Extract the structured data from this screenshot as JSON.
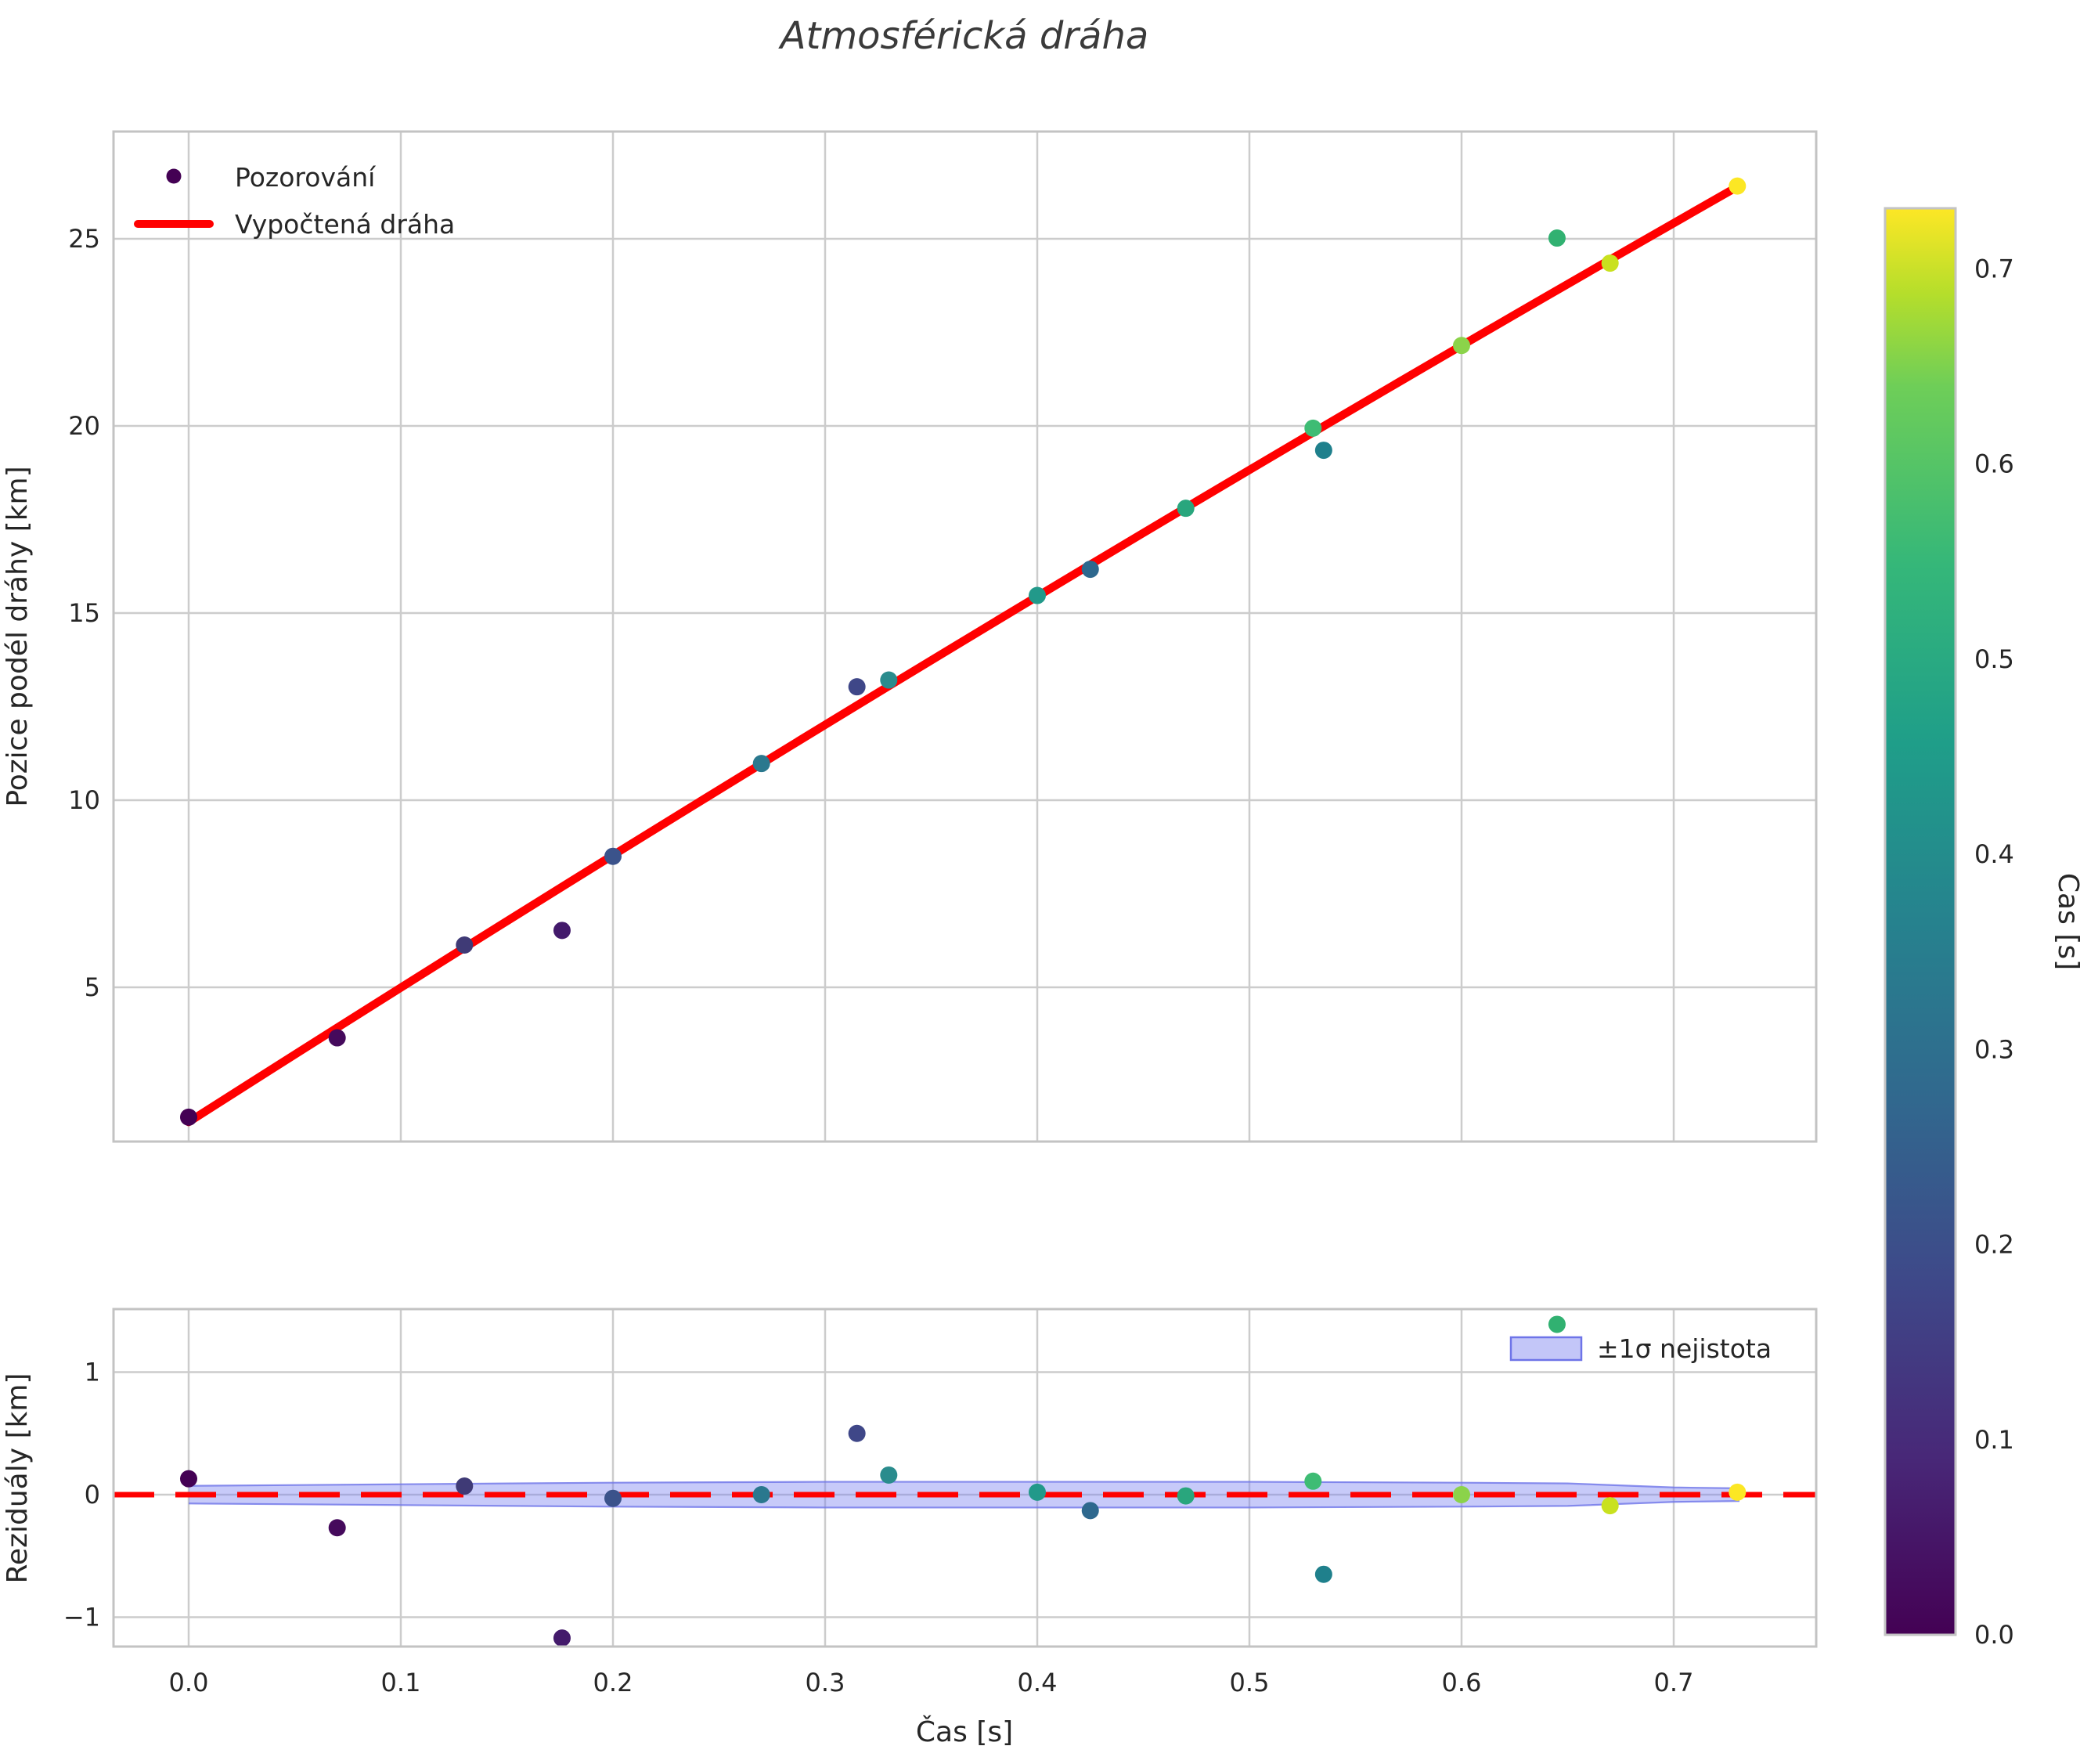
{
  "title": "Atmosférická dráha",
  "top_plot": {
    "ylabel": "Pozice podél dráhy [km]",
    "legend": {
      "observations": "Pozorování",
      "fit": "Vypočtená dráha"
    },
    "ytick_labels": [
      "5",
      "10",
      "15",
      "20",
      "25"
    ]
  },
  "bottom_plot": {
    "ylabel": "Reziduály [km]",
    "xlabel": "Čas [s]",
    "legend_band": "±1σ nejistota",
    "ytick_labels": [
      "−1",
      "0",
      "1"
    ]
  },
  "colorbar": {
    "label": "Čas [s]",
    "tick_labels": [
      "0.0",
      "0.1",
      "0.2",
      "0.3",
      "0.4",
      "0.5",
      "0.6",
      "0.7"
    ],
    "vmin": 0.0,
    "vmax": 0.731,
    "gradient_stops": [
      {
        "at": 0.0,
        "color": "#440154"
      },
      {
        "at": 0.125,
        "color": "#482878"
      },
      {
        "at": 0.25,
        "color": "#3e4989"
      },
      {
        "at": 0.375,
        "color": "#31688e"
      },
      {
        "at": 0.5,
        "color": "#26828e"
      },
      {
        "at": 0.625,
        "color": "#1f9e89"
      },
      {
        "at": 0.75,
        "color": "#35b779"
      },
      {
        "at": 0.875,
        "color": "#6ece58"
      },
      {
        "at": 0.94,
        "color": "#b5de2b"
      },
      {
        "at": 1.0,
        "color": "#fde725"
      }
    ]
  },
  "colors": {
    "fit_line": "#ff0000",
    "zero_line": "#ff0000",
    "band_fill": "rgba(122,128,240,0.42)",
    "band_edge": "#6e74e8",
    "grid": "#cccccc",
    "spine": "#c3c3c3",
    "legend_marker": "#440154"
  },
  "chart_data": {
    "type": "scatter",
    "title": "Atmosférická dráha",
    "xlabel": "Čas [s]",
    "ylabel_top": "Pozice podél dráhy [km]",
    "ylabel_bottom": "Reziduály [km]",
    "colorbar_label": "Čas [s]",
    "grid": true,
    "legend_position_top": "upper left",
    "legend_position_bottom": "upper right",
    "xlim": [
      -0.035,
      0.767
    ],
    "ylim_top": [
      0.9,
      27.8
    ],
    "ylim_bottom": [
      -1.24,
      1.51
    ],
    "xticks": [
      0.0,
      0.1,
      0.2,
      0.3,
      0.4,
      0.5,
      0.6,
      0.7
    ],
    "xtick_labels": [
      "0.0",
      "0.1",
      "0.2",
      "0.3",
      "0.4",
      "0.5",
      "0.6",
      "0.7"
    ],
    "yticks_top": [
      5,
      10,
      15,
      20,
      25
    ],
    "yticks_bottom": [
      -1,
      0,
      1
    ],
    "colorbar_ticks": [
      0.0,
      0.1,
      0.2,
      0.3,
      0.4,
      0.5,
      0.6,
      0.7
    ],
    "series": [
      {
        "name": "Pozorování",
        "t_s": [
          0.0,
          0.07,
          0.13,
          0.176,
          0.2,
          0.27,
          0.315,
          0.33,
          0.4,
          0.425,
          0.47,
          0.53,
          0.535,
          0.6,
          0.645,
          0.67,
          0.73
        ],
        "position_km": [
          1.53,
          3.65,
          6.13,
          6.52,
          8.5,
          10.98,
          13.03,
          13.21,
          15.47,
          16.17,
          17.8,
          19.94,
          19.35,
          22.15,
          25.02,
          24.35,
          26.41
        ],
        "residual_km": [
          0.13,
          -0.27,
          0.07,
          -1.17,
          -0.03,
          0.0,
          0.5,
          0.16,
          0.02,
          -0.13,
          -0.01,
          0.11,
          -0.65,
          0.0,
          1.39,
          -0.09,
          0.02
        ],
        "point_colors": [
          "#440154",
          "#450a5c",
          "#3f3a76",
          "#431a6b",
          "#3b538b",
          "#2a788e",
          "#3f4788",
          "#2a8c8d",
          "#22998a",
          "#2e688e",
          "#29a67d",
          "#3ebc74",
          "#1f808c",
          "#8bd34a",
          "#31b171",
          "#c9e11f",
          "#fce724"
        ]
      }
    ],
    "fit_line": {
      "name": "Vypočtená dráha",
      "t_s": [
        0.0,
        0.365,
        0.73
      ],
      "s_km": [
        1.4,
        14.25,
        26.39
      ]
    },
    "uncertainty_band": {
      "name": "±1σ nejistota",
      "t_s": [
        0.0,
        0.1,
        0.2,
        0.3,
        0.4,
        0.5,
        0.6,
        0.65,
        0.7,
        0.731
      ],
      "half_width_km": [
        0.072,
        0.085,
        0.098,
        0.105,
        0.105,
        0.105,
        0.098,
        0.092,
        0.059,
        0.052
      ],
      "center_km": 0.0
    }
  }
}
